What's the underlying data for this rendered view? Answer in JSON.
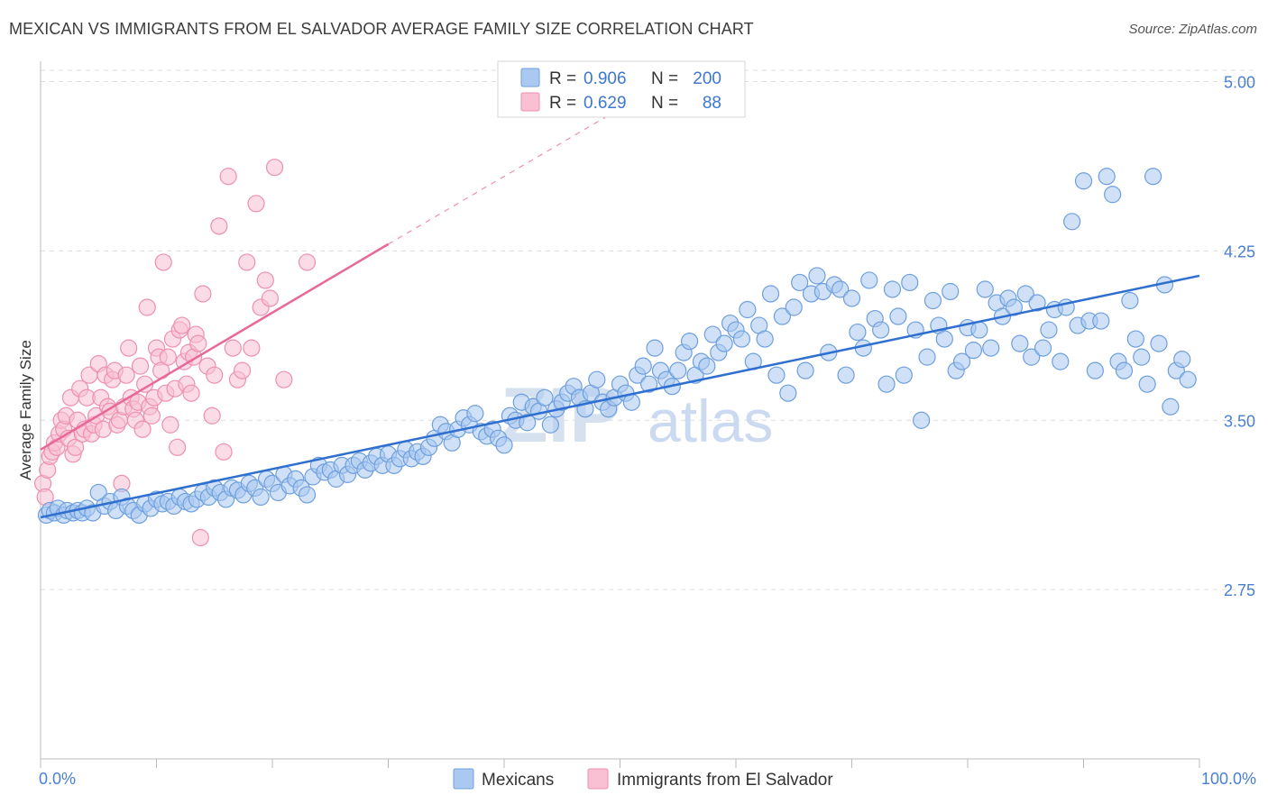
{
  "title": "MEXICAN VS IMMIGRANTS FROM EL SALVADOR AVERAGE FAMILY SIZE CORRELATION CHART",
  "source": "Source: ZipAtlas.com",
  "watermark": {
    "zip": "ZIP",
    "atlas": "atlas"
  },
  "colors": {
    "blue_fill": "#aac8f0",
    "blue_stroke": "#6d9fde",
    "blue_line": "#2f6fd0",
    "pink_fill": "#f8c0d2",
    "pink_stroke": "#ee8fb0",
    "pink_line": "#e8689a",
    "tick_label": "#4a7fd4",
    "grid": "#dddddd"
  },
  "legend": {
    "rows": [
      {
        "r_label": "R =",
        "r_value": "0.906",
        "n_label": "N =",
        "n_value": "200"
      },
      {
        "r_label": "R =",
        "r_value": "0.629",
        "n_label": "N =",
        "n_value": "88"
      }
    ]
  },
  "bottom_legend": [
    "Mexicans",
    "Immigrants from El Salvador"
  ],
  "chart_data": {
    "type": "scatter",
    "title": "MEXICAN VS IMMIGRANTS FROM EL SALVADOR AVERAGE FAMILY SIZE CORRELATION CHART",
    "xlabel": "",
    "ylabel": "Average Family Size",
    "xlim": [
      0,
      100
    ],
    "ylim": [
      2.0,
      5.05
    ],
    "x_tick_labels": [
      "0.0%",
      "100.0%"
    ],
    "y_ticks": [
      2.75,
      3.5,
      4.25,
      5.0
    ],
    "y_tick_labels": [
      "2.75",
      "3.50",
      "4.25",
      "5.00"
    ],
    "grid": "horizontal dashed",
    "legend_position": "top-center",
    "series": [
      {
        "name": "Mexicans",
        "R": 0.906,
        "N": 200,
        "trend": {
          "x": [
            0,
            100
          ],
          "y": [
            3.07,
            4.14
          ]
        },
        "points": [
          [
            0.5,
            3.08
          ],
          [
            0.8,
            3.1
          ],
          [
            1.2,
            3.09
          ],
          [
            1.5,
            3.11
          ],
          [
            2.0,
            3.08
          ],
          [
            2.3,
            3.1
          ],
          [
            2.8,
            3.09
          ],
          [
            3.2,
            3.1
          ],
          [
            3.6,
            3.09
          ],
          [
            4.0,
            3.11
          ],
          [
            4.5,
            3.09
          ],
          [
            5.0,
            3.18
          ],
          [
            5.5,
            3.12
          ],
          [
            6.0,
            3.14
          ],
          [
            6.5,
            3.1
          ],
          [
            7.0,
            3.16
          ],
          [
            7.5,
            3.12
          ],
          [
            8.0,
            3.1
          ],
          [
            8.5,
            3.08
          ],
          [
            9.0,
            3.13
          ],
          [
            9.5,
            3.11
          ],
          [
            10.0,
            3.15
          ],
          [
            10.5,
            3.13
          ],
          [
            11.0,
            3.14
          ],
          [
            11.5,
            3.12
          ],
          [
            12.0,
            3.16
          ],
          [
            12.5,
            3.14
          ],
          [
            13.0,
            3.13
          ],
          [
            13.5,
            3.15
          ],
          [
            14.0,
            3.18
          ],
          [
            14.5,
            3.16
          ],
          [
            15.0,
            3.2
          ],
          [
            15.5,
            3.18
          ],
          [
            16.0,
            3.15
          ],
          [
            16.5,
            3.2
          ],
          [
            17.0,
            3.19
          ],
          [
            17.5,
            3.17
          ],
          [
            18.0,
            3.22
          ],
          [
            18.5,
            3.2
          ],
          [
            19.0,
            3.16
          ],
          [
            19.5,
            3.24
          ],
          [
            20.0,
            3.22
          ],
          [
            20.5,
            3.18
          ],
          [
            21.0,
            3.26
          ],
          [
            21.5,
            3.21
          ],
          [
            22.0,
            3.24
          ],
          [
            22.5,
            3.2
          ],
          [
            23.0,
            3.17
          ],
          [
            23.5,
            3.25
          ],
          [
            24.0,
            3.3
          ],
          [
            24.5,
            3.27
          ],
          [
            25.0,
            3.28
          ],
          [
            25.5,
            3.24
          ],
          [
            26.0,
            3.3
          ],
          [
            26.5,
            3.26
          ],
          [
            27.0,
            3.3
          ],
          [
            27.5,
            3.32
          ],
          [
            28.0,
            3.28
          ],
          [
            28.5,
            3.31
          ],
          [
            29.0,
            3.34
          ],
          [
            29.5,
            3.3
          ],
          [
            30.0,
            3.35
          ],
          [
            30.5,
            3.3
          ],
          [
            31.0,
            3.33
          ],
          [
            31.5,
            3.37
          ],
          [
            32.0,
            3.33
          ],
          [
            32.5,
            3.36
          ],
          [
            33.0,
            3.34
          ],
          [
            33.5,
            3.38
          ],
          [
            34.0,
            3.42
          ],
          [
            34.5,
            3.48
          ],
          [
            35.0,
            3.45
          ],
          [
            35.5,
            3.4
          ],
          [
            36.0,
            3.46
          ],
          [
            36.5,
            3.51
          ],
          [
            37.0,
            3.48
          ],
          [
            37.5,
            3.53
          ],
          [
            38.0,
            3.45
          ],
          [
            38.5,
            3.43
          ],
          [
            39.0,
            3.46
          ],
          [
            39.5,
            3.42
          ],
          [
            40.0,
            3.39
          ],
          [
            40.5,
            3.52
          ],
          [
            41.0,
            3.5
          ],
          [
            41.5,
            3.58
          ],
          [
            42.0,
            3.49
          ],
          [
            42.5,
            3.56
          ],
          [
            43.0,
            3.54
          ],
          [
            43.5,
            3.6
          ],
          [
            44.0,
            3.48
          ],
          [
            44.5,
            3.55
          ],
          [
            45.0,
            3.58
          ],
          [
            45.5,
            3.62
          ],
          [
            46.0,
            3.65
          ],
          [
            46.5,
            3.6
          ],
          [
            47.0,
            3.55
          ],
          [
            47.5,
            3.62
          ],
          [
            48.0,
            3.68
          ],
          [
            48.5,
            3.58
          ],
          [
            49.0,
            3.55
          ],
          [
            49.5,
            3.6
          ],
          [
            50.0,
            3.66
          ],
          [
            50.5,
            3.62
          ],
          [
            51.0,
            3.58
          ],
          [
            51.5,
            3.7
          ],
          [
            52.0,
            3.74
          ],
          [
            52.5,
            3.66
          ],
          [
            53.0,
            3.82
          ],
          [
            53.5,
            3.72
          ],
          [
            54.0,
            3.68
          ],
          [
            54.5,
            3.65
          ],
          [
            55.0,
            3.72
          ],
          [
            55.5,
            3.8
          ],
          [
            56.0,
            3.85
          ],
          [
            56.5,
            3.7
          ],
          [
            57.0,
            3.76
          ],
          [
            57.5,
            3.74
          ],
          [
            58.0,
            3.88
          ],
          [
            58.5,
            3.8
          ],
          [
            59.0,
            3.84
          ],
          [
            59.5,
            3.93
          ],
          [
            60.0,
            3.9
          ],
          [
            60.5,
            3.86
          ],
          [
            61.0,
            3.99
          ],
          [
            61.5,
            3.76
          ],
          [
            62.0,
            3.92
          ],
          [
            62.5,
            3.86
          ],
          [
            63.0,
            4.06
          ],
          [
            63.5,
            3.7
          ],
          [
            64.0,
            3.96
          ],
          [
            64.5,
            3.62
          ],
          [
            65.0,
            4.0
          ],
          [
            65.5,
            4.11
          ],
          [
            66.0,
            3.72
          ],
          [
            66.5,
            4.06
          ],
          [
            67.0,
            4.14
          ],
          [
            67.5,
            4.07
          ],
          [
            68.0,
            3.8
          ],
          [
            68.5,
            4.1
          ],
          [
            69.0,
            4.08
          ],
          [
            69.5,
            3.7
          ],
          [
            70.0,
            4.04
          ],
          [
            70.5,
            3.89
          ],
          [
            71.0,
            3.82
          ],
          [
            71.5,
            4.12
          ],
          [
            72.0,
            3.95
          ],
          [
            72.5,
            3.9
          ],
          [
            73.0,
            3.66
          ],
          [
            73.5,
            4.08
          ],
          [
            74.0,
            3.96
          ],
          [
            74.5,
            3.7
          ],
          [
            75.0,
            4.11
          ],
          [
            75.5,
            3.9
          ],
          [
            76.0,
            3.5
          ],
          [
            76.5,
            3.78
          ],
          [
            77.0,
            4.03
          ],
          [
            77.5,
            3.92
          ],
          [
            78.0,
            3.86
          ],
          [
            78.5,
            4.07
          ],
          [
            79.0,
            3.72
          ],
          [
            79.5,
            3.76
          ],
          [
            80.0,
            3.91
          ],
          [
            80.5,
            3.81
          ],
          [
            81.0,
            3.9
          ],
          [
            81.5,
            4.08
          ],
          [
            82.0,
            3.82
          ],
          [
            82.5,
            4.02
          ],
          [
            83.0,
            3.96
          ],
          [
            83.5,
            4.04
          ],
          [
            84.0,
            4.0
          ],
          [
            84.5,
            3.84
          ],
          [
            85.0,
            4.06
          ],
          [
            85.5,
            3.78
          ],
          [
            86.0,
            4.02
          ],
          [
            86.5,
            3.82
          ],
          [
            87.0,
            3.9
          ],
          [
            87.5,
            3.99
          ],
          [
            88.0,
            3.76
          ],
          [
            88.5,
            4.0
          ],
          [
            89.0,
            4.38
          ],
          [
            89.5,
            3.92
          ],
          [
            90.0,
            4.56
          ],
          [
            90.5,
            3.94
          ],
          [
            91.0,
            3.72
          ],
          [
            91.5,
            3.94
          ],
          [
            92.0,
            4.58
          ],
          [
            92.5,
            4.5
          ],
          [
            93.0,
            3.76
          ],
          [
            93.5,
            3.72
          ],
          [
            94.0,
            4.03
          ],
          [
            94.5,
            3.86
          ],
          [
            95.0,
            3.78
          ],
          [
            95.5,
            3.66
          ],
          [
            96.0,
            4.58
          ],
          [
            96.5,
            3.84
          ],
          [
            97.0,
            4.1
          ],
          [
            97.5,
            3.56
          ],
          [
            98.0,
            3.72
          ],
          [
            98.5,
            3.77
          ],
          [
            99.0,
            3.68
          ]
        ]
      },
      {
        "name": "Immigrants from El Salvador",
        "R": 0.629,
        "N": 88,
        "trend": {
          "x": [
            0,
            30
          ],
          "y": [
            3.37,
            4.28
          ]
        },
        "trend_dashed": {
          "x": [
            30,
            50
          ],
          "y": [
            4.28,
            4.88
          ]
        },
        "points": [
          [
            0.2,
            3.22
          ],
          [
            0.4,
            3.16
          ],
          [
            0.6,
            3.28
          ],
          [
            0.8,
            3.34
          ],
          [
            1.0,
            3.36
          ],
          [
            1.2,
            3.4
          ],
          [
            1.4,
            3.38
          ],
          [
            1.6,
            3.44
          ],
          [
            1.8,
            3.5
          ],
          [
            2.0,
            3.46
          ],
          [
            2.2,
            3.52
          ],
          [
            2.4,
            3.42
          ],
          [
            2.6,
            3.6
          ],
          [
            2.8,
            3.35
          ],
          [
            3.0,
            3.38
          ],
          [
            3.2,
            3.5
          ],
          [
            3.4,
            3.64
          ],
          [
            3.6,
            3.44
          ],
          [
            3.8,
            3.46
          ],
          [
            4.0,
            3.6
          ],
          [
            4.2,
            3.7
          ],
          [
            4.4,
            3.44
          ],
          [
            4.6,
            3.48
          ],
          [
            4.8,
            3.52
          ],
          [
            5.0,
            3.75
          ],
          [
            5.2,
            3.6
          ],
          [
            5.4,
            3.46
          ],
          [
            5.6,
            3.7
          ],
          [
            5.8,
            3.56
          ],
          [
            6.0,
            3.54
          ],
          [
            6.2,
            3.68
          ],
          [
            6.4,
            3.72
          ],
          [
            6.6,
            3.48
          ],
          [
            6.8,
            3.5
          ],
          [
            7.0,
            3.22
          ],
          [
            7.2,
            3.56
          ],
          [
            7.4,
            3.7
          ],
          [
            7.6,
            3.82
          ],
          [
            7.8,
            3.6
          ],
          [
            8.0,
            3.55
          ],
          [
            8.2,
            3.5
          ],
          [
            8.4,
            3.58
          ],
          [
            8.6,
            3.74
          ],
          [
            8.8,
            3.46
          ],
          [
            9.0,
            3.66
          ],
          [
            9.2,
            4.0
          ],
          [
            9.4,
            3.56
          ],
          [
            9.6,
            3.52
          ],
          [
            9.8,
            3.6
          ],
          [
            10.0,
            3.82
          ],
          [
            10.2,
            3.78
          ],
          [
            10.4,
            3.72
          ],
          [
            10.6,
            4.2
          ],
          [
            10.8,
            3.62
          ],
          [
            11.0,
            3.78
          ],
          [
            11.2,
            3.48
          ],
          [
            11.4,
            3.86
          ],
          [
            11.6,
            3.64
          ],
          [
            11.8,
            3.38
          ],
          [
            12.0,
            3.9
          ],
          [
            12.2,
            3.92
          ],
          [
            12.4,
            3.76
          ],
          [
            12.6,
            3.66
          ],
          [
            12.8,
            3.8
          ],
          [
            13.0,
            3.62
          ],
          [
            13.2,
            3.78
          ],
          [
            13.4,
            3.88
          ],
          [
            13.6,
            3.84
          ],
          [
            13.8,
            2.98
          ],
          [
            14.0,
            4.06
          ],
          [
            14.4,
            3.74
          ],
          [
            14.8,
            3.52
          ],
          [
            15.0,
            3.7
          ],
          [
            15.4,
            4.36
          ],
          [
            15.8,
            3.36
          ],
          [
            16.2,
            4.58
          ],
          [
            16.6,
            3.82
          ],
          [
            17.0,
            3.68
          ],
          [
            17.4,
            3.72
          ],
          [
            17.8,
            4.2
          ],
          [
            18.2,
            3.82
          ],
          [
            18.6,
            4.46
          ],
          [
            19.0,
            4.0
          ],
          [
            19.4,
            4.12
          ],
          [
            19.8,
            4.04
          ],
          [
            20.2,
            4.62
          ],
          [
            21.0,
            3.68
          ],
          [
            23.0,
            4.2
          ]
        ]
      }
    ]
  }
}
